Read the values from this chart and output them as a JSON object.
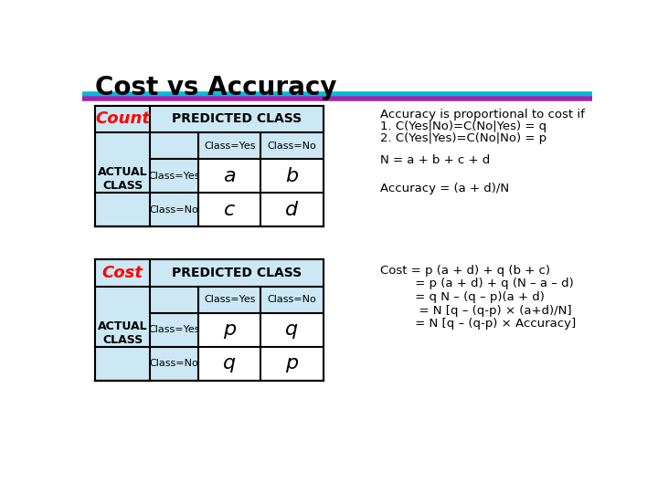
{
  "title": "Cost vs Accuracy",
  "title_fontsize": 20,
  "bg_color": "#ffffff",
  "stripe1_color": "#00bcd4",
  "stripe2_color": "#9c27b0",
  "count_label": "Count",
  "cost_label": "Cost",
  "pred_label": "PREDICTED CLASS",
  "actual_label": "ACTUAL\nCLASS",
  "class_yes": "Class=Yes",
  "class_no": "Class=No",
  "count_cells": [
    [
      "a",
      "b"
    ],
    [
      "c",
      "d"
    ]
  ],
  "cost_cells": [
    [
      "p",
      "q"
    ],
    [
      "q",
      "p"
    ]
  ],
  "right_text_top": [
    "Accuracy is proportional to cost if",
    "1. C(Yes|No)=C(No|Yes) = q",
    "2. C(Yes|Yes)=C(No|No) = p"
  ],
  "right_text_mid": [
    "N = a + b + c + d"
  ],
  "right_text_acc": [
    "Accuracy = (a + d)/N"
  ],
  "right_text_bot": [
    "Cost = p (a + d) + q (b + c)",
    "         = p (a + d) + q (N – a – d)",
    "         = q N – (q – p)(a + d)",
    "          = N [q – (q-p) × (a+d)/N]",
    "         = N [q – (q-p) × Accuracy]"
  ],
  "red_color": "#ff0000",
  "text_color": "#000000",
  "white": "#ffffff",
  "light_blue": "#cce8f4"
}
